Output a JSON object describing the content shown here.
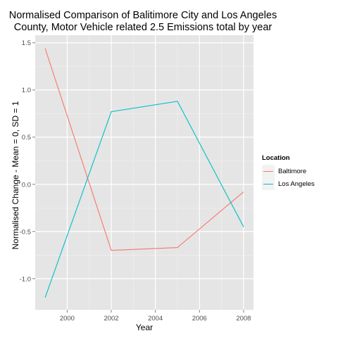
{
  "chart_data": {
    "type": "line",
    "title": "Normalised Comparison of Balitimore City and Los Angeles County, Motor Vehicle related 2.5 Emissions total by year",
    "title_lines": [
      "Normalised Comparison of Balitimore City and Los Angeles",
      "County, Motor Vehicle related 2.5 Emissions total by year"
    ],
    "xlabel": "Year",
    "ylabel": "Normalised Change - Mean = 0, SD = 1",
    "x": [
      1999,
      2002,
      2005,
      2008
    ],
    "xlim": [
      1998.55,
      2008.45
    ],
    "ylim": [
      -1.33,
      1.58
    ],
    "xticks": [
      2000,
      2002,
      2004,
      2006,
      2008
    ],
    "yticks": [
      -1.0,
      -0.5,
      0.0,
      0.5,
      1.0,
      1.5
    ],
    "xtick_labels": [
      "2000",
      "2002",
      "2004",
      "2006",
      "2008"
    ],
    "ytick_labels": [
      "-1.0",
      "-0.5",
      "0.0",
      "0.5",
      "1.0",
      "1.5"
    ],
    "grid": true,
    "legend_title": "Location",
    "legend_position": "right",
    "series": [
      {
        "name": "Baltimore",
        "color": "#F8766D",
        "values": [
          1.44,
          -0.7,
          -0.67,
          -0.08
        ]
      },
      {
        "name": "Los Angeles",
        "color": "#00BFC4",
        "values": [
          -1.2,
          0.77,
          0.88,
          -0.45
        ]
      }
    ]
  }
}
